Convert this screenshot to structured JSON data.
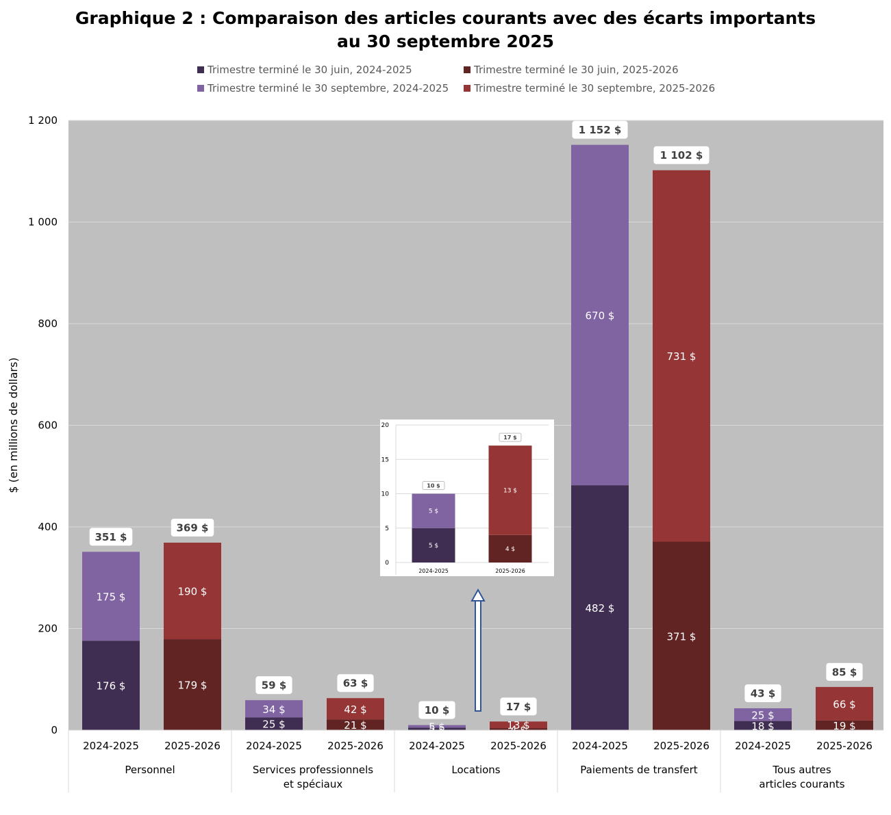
{
  "title_line1": "Graphique 2 : Comparaison des articles courants avec des écarts importants",
  "title_line2": "au 30 septembre 2025",
  "colors": {
    "q1_2024": "#3f2e51",
    "q2_2024": "#8064a2",
    "q1_2025": "#622323",
    "q2_2025": "#953535",
    "plot_bg": "#bfbfbf",
    "grid": "#d9d9d9",
    "arrow": "#2f5597"
  },
  "legend": [
    {
      "label": "Trimestre terminé le 30 juin, 2024-2025",
      "color_key": "q1_2024"
    },
    {
      "label": "Trimestre terminé le 30 juin, 2025-2026",
      "color_key": "q1_2025"
    },
    {
      "label": "Trimestre terminé le 30 septembre, 2024-2025",
      "color_key": "q2_2024"
    },
    {
      "label": "Trimestre terminé le 30 septembre, 2025-2026",
      "color_key": "q2_2025"
    }
  ],
  "chart_data": {
    "type": "bar",
    "stacked": true,
    "ylabel": "$ (en millions de dollars)",
    "ylim": [
      0,
      1200
    ],
    "yticks": [
      0,
      200,
      400,
      600,
      800,
      1000,
      1200
    ],
    "ytick_labels": [
      "0",
      "200",
      "400",
      "600",
      "800",
      "1 000",
      "1 200"
    ],
    "groups": [
      {
        "label": [
          "Personnel"
        ],
        "bars": [
          {
            "year": "2024-2025",
            "q1": 176,
            "q2": 175,
            "q1_label": "176 $",
            "q2_label": "175 $",
            "total_label": "351 $",
            "total": 351
          },
          {
            "year": "2025-2026",
            "q1": 179,
            "q2": 190,
            "q1_label": "179 $",
            "q2_label": "190 $",
            "total_label": "369 $",
            "total": 369
          }
        ]
      },
      {
        "label": [
          "Services professionnels",
          "et spéciaux"
        ],
        "bars": [
          {
            "year": "2024-2025",
            "q1": 25,
            "q2": 34,
            "q1_label": "25 $",
            "q2_label": "34 $",
            "total_label": "59 $",
            "total": 59
          },
          {
            "year": "2025-2026",
            "q1": 21,
            "q2": 42,
            "q1_label": "21 $",
            "q2_label": "42 $",
            "total_label": "63 $",
            "total": 63
          }
        ]
      },
      {
        "label": [
          "Locations"
        ],
        "bars": [
          {
            "year": "2024-2025",
            "q1": 5,
            "q2": 5,
            "q1_label": "5 $",
            "q2_label": "5 $",
            "total_label": "10 $",
            "total": 10
          },
          {
            "year": "2025-2026",
            "q1": 4,
            "q2": 13,
            "q1_label": "4 $",
            "q2_label": "13 $",
            "total_label": "17 $",
            "total": 17
          }
        ]
      },
      {
        "label": [
          "Paiements de transfert"
        ],
        "bars": [
          {
            "year": "2024-2025",
            "q1": 482,
            "q2": 670,
            "q1_label": "482 $",
            "q2_label": "670 $",
            "total_label": "1 152 $",
            "total": 1152
          },
          {
            "year": "2025-2026",
            "q1": 371,
            "q2": 731,
            "q1_label": "371 $",
            "q2_label": "731 $",
            "total_label": "1 102 $",
            "total": 1102
          }
        ]
      },
      {
        "label": [
          "Tous autres",
          "articles courants"
        ],
        "bars": [
          {
            "year": "2024-2025",
            "q1": 18,
            "q2": 25,
            "q1_label": "18 $",
            "q2_label": "25 $",
            "total_label": "43 $",
            "total": 43
          },
          {
            "year": "2025-2026",
            "q1": 19,
            "q2": 66,
            "q1_label": "19 $",
            "q2_label": "66 $",
            "total_label": "85 $",
            "total": 85
          }
        ]
      }
    ],
    "inset": {
      "ylim": [
        0,
        20
      ],
      "yticks": [
        0,
        5,
        10,
        15,
        20
      ],
      "ytick_labels": [
        "0",
        "5",
        "10",
        "15",
        "20"
      ],
      "source_group": "Locations"
    }
  }
}
